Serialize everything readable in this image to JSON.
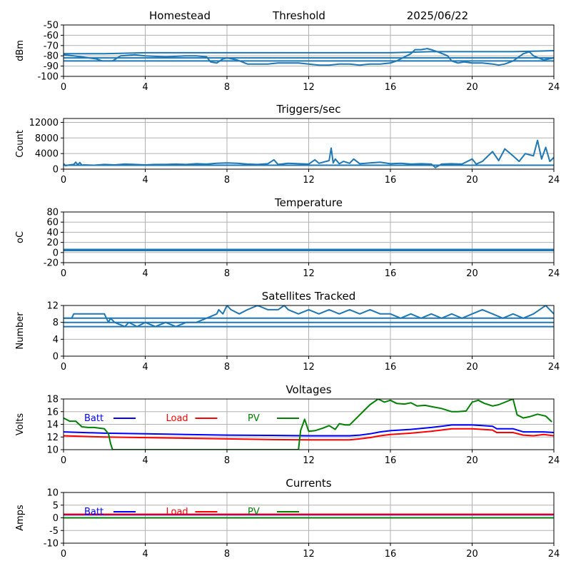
{
  "header": {
    "station": "Homestead",
    "mode": "Threshold",
    "date": "2025/06/22"
  },
  "colors": {
    "series": "#1f77b4",
    "batt": "#0000ff",
    "load": "#ff0000",
    "pv": "#008000",
    "grid": "#b0b0b0"
  },
  "chart_data": [
    {
      "id": "signal",
      "type": "line",
      "title": "",
      "ylabel": "dBm",
      "xlim": [
        0,
        24
      ],
      "ylim": [
        -100,
        -50
      ],
      "yticks": [
        -50,
        -60,
        -70,
        -80,
        -90,
        -100
      ],
      "xticks": [
        0,
        4,
        8,
        12,
        16,
        20,
        24
      ],
      "grid": true,
      "series": [
        {
          "x": [
            0,
            0.5,
            1.6,
            1.9,
            2.4,
            2.8,
            3.5,
            4,
            5,
            6,
            6.5,
            7,
            7.2,
            7.5,
            7.8,
            8,
            8.5,
            9,
            9.5,
            10,
            10.5,
            11,
            11.5,
            12,
            12.5,
            13,
            13.5,
            14,
            14.5,
            15,
            15.5,
            16,
            16.3,
            16.6,
            17,
            17.2,
            17.5,
            17.8,
            18,
            18.3,
            18.8,
            19,
            19.3,
            19.6,
            20,
            20.5,
            21,
            21.3,
            21.6,
            22,
            22.5,
            22.8,
            23,
            23.5,
            24
          ],
          "y": [
            -79,
            -80,
            -83,
            -85,
            -85,
            -80,
            -79,
            -80,
            -81,
            -80,
            -80,
            -81,
            -86,
            -87,
            -83,
            -82,
            -84,
            -88,
            -88,
            -88,
            -87,
            -87,
            -87,
            -88,
            -89,
            -89,
            -88,
            -88,
            -89,
            -88,
            -88,
            -87,
            -85,
            -82,
            -78,
            -74,
            -74,
            -73,
            -74,
            -76,
            -80,
            -85,
            -87,
            -86,
            -87,
            -87,
            -88,
            -89,
            -88,
            -85,
            -78,
            -76,
            -80,
            -84,
            -82
          ]
        },
        {
          "x": [
            0,
            2,
            4,
            6,
            8,
            10,
            12,
            14,
            16,
            18,
            20,
            22,
            24
          ],
          "y": [
            -78,
            -78,
            -77,
            -77,
            -77,
            -77,
            -77,
            -77,
            -77,
            -76,
            -76,
            -76,
            -75
          ]
        },
        {
          "x": [
            0,
            24
          ],
          "y": [
            -82,
            -82
          ]
        },
        {
          "x": [
            0,
            24
          ],
          "y": [
            -85,
            -85
          ]
        }
      ]
    },
    {
      "id": "triggers",
      "type": "line",
      "title": "Triggers/sec",
      "ylabel": "Count",
      "xlim": [
        0,
        24
      ],
      "ylim": [
        0,
        13000
      ],
      "yticks": [
        0,
        4000,
        8000,
        12000
      ],
      "xticks": [
        0,
        4,
        8,
        12,
        16,
        20,
        24
      ],
      "grid": true,
      "series": [
        {
          "x": [
            0,
            0.1,
            0.3,
            0.5,
            0.6,
            0.7,
            0.8,
            0.9,
            1,
            1.5,
            2,
            2.5,
            3,
            3.5,
            4,
            4.5,
            5,
            5.5,
            6,
            6.5,
            7,
            7.5,
            8,
            8.5,
            9,
            9.5,
            10,
            10.3,
            10.5,
            11,
            11.5,
            12,
            12.3,
            12.5,
            13,
            13.1,
            13.2,
            13.3,
            13.5,
            13.7,
            14,
            14.2,
            14.5,
            15,
            15.5,
            16,
            16.5,
            17,
            17.5,
            18,
            18.2,
            18.5,
            19,
            19.5,
            20,
            20.2,
            20.5,
            21,
            21.3,
            21.6,
            22,
            22.3,
            22.6,
            23,
            23.2,
            23.4,
            23.6,
            23.8,
            24
          ],
          "y": [
            1400,
            900,
            1100,
            1200,
            1800,
            1100,
            1700,
            1000,
            1100,
            1000,
            1200,
            1100,
            1300,
            1200,
            1100,
            1200,
            1200,
            1300,
            1200,
            1400,
            1300,
            1500,
            1600,
            1500,
            1300,
            1200,
            1400,
            2400,
            1200,
            1500,
            1400,
            1300,
            2400,
            1500,
            2200,
            5400,
            1600,
            2600,
            1400,
            2000,
            1500,
            2600,
            1400,
            1600,
            1800,
            1400,
            1500,
            1300,
            1400,
            1300,
            400,
            1300,
            1400,
            1300,
            2600,
            1300,
            2000,
            4500,
            2200,
            5200,
            3400,
            2000,
            4000,
            3400,
            7400,
            2600,
            5600,
            2000,
            3000
          ]
        },
        {
          "x": [
            0,
            24
          ],
          "y": [
            1000,
            1000
          ]
        }
      ]
    },
    {
      "id": "temperature",
      "type": "line",
      "title": "Temperature",
      "ylabel": "oC",
      "xlim": [
        0,
        24
      ],
      "ylim": [
        -20,
        80
      ],
      "yticks": [
        -20,
        0,
        20,
        40,
        60,
        80
      ],
      "xticks": [
        0,
        4,
        8,
        12,
        16,
        20,
        24
      ],
      "grid": true,
      "series": [
        {
          "x": [
            0,
            24
          ],
          "y": [
            6,
            6
          ]
        },
        {
          "x": [
            0,
            24
          ],
          "y": [
            5,
            5
          ]
        },
        {
          "x": [
            0,
            24
          ],
          "y": [
            4,
            4
          ]
        }
      ]
    },
    {
      "id": "satellites",
      "type": "line",
      "title": "Satellites Tracked",
      "ylabel": "Number",
      "xlim": [
        0,
        24
      ],
      "ylim": [
        0,
        12
      ],
      "yticks": [
        0,
        4,
        8,
        12
      ],
      "xticks": [
        0,
        4,
        8,
        12,
        16,
        20,
        24
      ],
      "grid": true,
      "series": [
        {
          "x": [
            0,
            0.4,
            0.5,
            2,
            2.1,
            2.2,
            2.3,
            2.5,
            3,
            3.2,
            3.6,
            4,
            4.5,
            5,
            5.5,
            6,
            6.5,
            7,
            7.5,
            7.6,
            7.8,
            8,
            8.2,
            8.6,
            9,
            9.5,
            10,
            10.5,
            10.8,
            11,
            11.5,
            12,
            12.5,
            13,
            13.5,
            14,
            14.5,
            15,
            15.5,
            16,
            16.5,
            17,
            17.5,
            18,
            18.5,
            19,
            19.5,
            20,
            20.5,
            21,
            21.5,
            22,
            22.5,
            23,
            23.3,
            23.6,
            23.8,
            24
          ],
          "y": [
            9,
            9,
            10,
            10,
            9,
            8,
            9,
            8,
            7,
            8,
            7,
            8,
            7,
            8,
            7,
            8,
            8,
            9,
            10,
            11,
            10,
            12,
            11,
            10,
            11,
            12,
            11,
            11,
            12,
            11,
            10,
            11,
            10,
            11,
            10,
            11,
            10,
            11,
            10,
            10,
            9,
            10,
            9,
            10,
            9,
            10,
            9,
            10,
            11,
            10,
            9,
            10,
            9,
            10,
            11,
            12,
            11,
            10
          ]
        },
        {
          "x": [
            0,
            24
          ],
          "y": [
            9,
            9
          ]
        },
        {
          "x": [
            0,
            24
          ],
          "y": [
            8,
            8
          ]
        },
        {
          "x": [
            0,
            24
          ],
          "y": [
            7,
            7
          ]
        }
      ]
    },
    {
      "id": "voltages",
      "type": "line",
      "title": "Voltages",
      "ylabel": "Volts",
      "xlim": [
        0,
        24
      ],
      "ylim": [
        10,
        18
      ],
      "yticks": [
        10,
        12,
        14,
        16,
        18
      ],
      "xticks": [
        0,
        4,
        8,
        12,
        16,
        20,
        24
      ],
      "grid": true,
      "legend": "top-left",
      "series": [
        {
          "name": "Batt",
          "color": "#0000ff",
          "x": [
            0,
            2,
            4,
            6,
            8,
            10,
            12,
            13,
            14,
            14.5,
            15,
            15.5,
            16,
            17,
            18,
            18.5,
            19,
            19.5,
            20,
            20.5,
            21,
            21.2,
            22,
            22.5,
            23,
            23.5,
            24
          ],
          "y": [
            12.8,
            12.6,
            12.5,
            12.4,
            12.3,
            12.25,
            12.2,
            12.2,
            12.2,
            12.3,
            12.5,
            12.8,
            13.0,
            13.2,
            13.5,
            13.7,
            13.9,
            13.9,
            13.9,
            13.8,
            13.7,
            13.3,
            13.3,
            12.8,
            12.8,
            12.8,
            12.7
          ]
        },
        {
          "name": "Load",
          "color": "#ff0000",
          "x": [
            0,
            2,
            4,
            6,
            8,
            10,
            12,
            13,
            14,
            14.5,
            15,
            15.5,
            16,
            17,
            18,
            18.5,
            19,
            19.5,
            20,
            20.5,
            21,
            21.2,
            22,
            22.5,
            23,
            23.5,
            24
          ],
          "y": [
            12.2,
            12.0,
            11.9,
            11.8,
            11.7,
            11.6,
            11.55,
            11.55,
            11.55,
            11.7,
            11.9,
            12.2,
            12.4,
            12.6,
            12.9,
            13.1,
            13.3,
            13.3,
            13.3,
            13.2,
            13.1,
            12.7,
            12.7,
            12.3,
            12.2,
            12.4,
            12.2
          ]
        },
        {
          "name": "PV",
          "color": "#008000",
          "x": [
            0,
            0.3,
            0.5,
            0.6,
            0.9,
            1.2,
            1.5,
            2.0,
            2.2,
            2.3,
            2.4,
            11.5,
            11.6,
            11.8,
            12.0,
            12.3,
            12.7,
            13.0,
            13.3,
            13.5,
            13.8,
            14.0,
            14.5,
            15.0,
            15.4,
            15.7,
            16.0,
            16.3,
            16.7,
            17.0,
            17.3,
            17.7,
            18.0,
            18.5,
            19.0,
            19.3,
            19.7,
            20.0,
            20.3,
            20.6,
            21.0,
            21.3,
            22.0,
            22.2,
            22.5,
            22.8,
            23.2,
            23.6,
            23.9
          ],
          "y": [
            15.0,
            14.5,
            14.5,
            14.5,
            13.6,
            13.5,
            13.5,
            13.3,
            12.5,
            11.0,
            10.0,
            10.0,
            13.0,
            14.8,
            12.9,
            13.0,
            13.4,
            13.8,
            13.2,
            14.1,
            13.9,
            13.9,
            15.5,
            17.1,
            18.0,
            17.5,
            17.8,
            17.3,
            17.2,
            17.4,
            16.9,
            17.0,
            16.8,
            16.5,
            16.0,
            16.0,
            16.1,
            17.5,
            17.8,
            17.3,
            16.9,
            17.1,
            18.0,
            15.5,
            15.0,
            15.2,
            15.6,
            15.3,
            14.4
          ]
        }
      ]
    },
    {
      "id": "currents",
      "type": "line",
      "title": "Currents",
      "ylabel": "Amps",
      "xlim": [
        0,
        24
      ],
      "ylim": [
        -10,
        10
      ],
      "yticks": [
        -10,
        -5,
        0,
        5,
        10
      ],
      "xticks": [
        0,
        4,
        8,
        12,
        16,
        20,
        24
      ],
      "grid": true,
      "legend": "top-left",
      "series": [
        {
          "name": "Batt",
          "color": "#0000ff",
          "x": [
            0,
            24
          ],
          "y": [
            1.2,
            1.2
          ]
        },
        {
          "name": "Load",
          "color": "#ff0000",
          "x": [
            0,
            24
          ],
          "y": [
            1.4,
            1.4
          ]
        },
        {
          "name": "PV",
          "color": "#008000",
          "x": [
            0,
            24
          ],
          "y": [
            0.0,
            0.0
          ]
        }
      ]
    }
  ]
}
